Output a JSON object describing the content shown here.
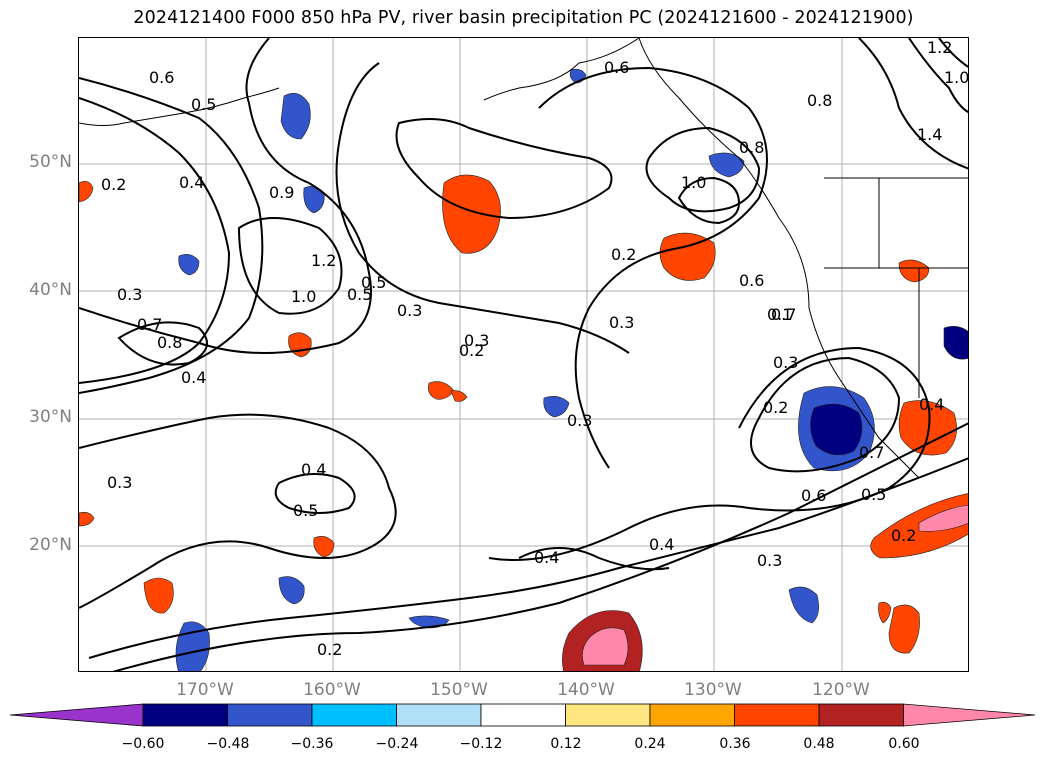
{
  "title": "2024121400 F000 850 hPa PV, river basin precipitation PC (2024121600 - 2024121900)",
  "lat_labels": [
    "50°N",
    "40°N",
    "30°N",
    "20°N"
  ],
  "lon_labels": [
    "170°W",
    "160°W",
    "150°W",
    "140°W",
    "130°W",
    "120°W"
  ],
  "colorbar": {
    "ticks": [
      "−0.60",
      "−0.48",
      "−0.36",
      "−0.24",
      "−0.12",
      "0.12",
      "0.24",
      "0.36",
      "0.48",
      "0.60"
    ],
    "colors": [
      "#9933cc",
      "#000080",
      "#3355cc",
      "#00bfff",
      "#b0e0f8",
      "#ffffff",
      "#ffe680",
      "#ffa500",
      "#ff4500",
      "#b22222",
      "#ff88aa"
    ]
  },
  "contour_labels": [
    "0.6",
    "0.5",
    "0.2",
    "0.4",
    "0.3",
    "0.7",
    "0.8",
    "0.9",
    "1.2",
    "1.0",
    "0.5",
    "0.3",
    "0.3",
    "0.2",
    "0.3",
    "0.6",
    "0.8",
    "1.0",
    "0.6",
    "0.7",
    "0.3",
    "0.2",
    "0.7",
    "0.6",
    "0.5",
    "0.4",
    "0.3",
    "0.4",
    "0.5",
    "0.3",
    "0.4",
    "0.2",
    "0.3",
    "0.2",
    "0.4",
    "0.2",
    "0.5",
    "0.1",
    "1.4",
    "1.0",
    "1.2",
    "0.8",
    "0.4"
  ]
}
